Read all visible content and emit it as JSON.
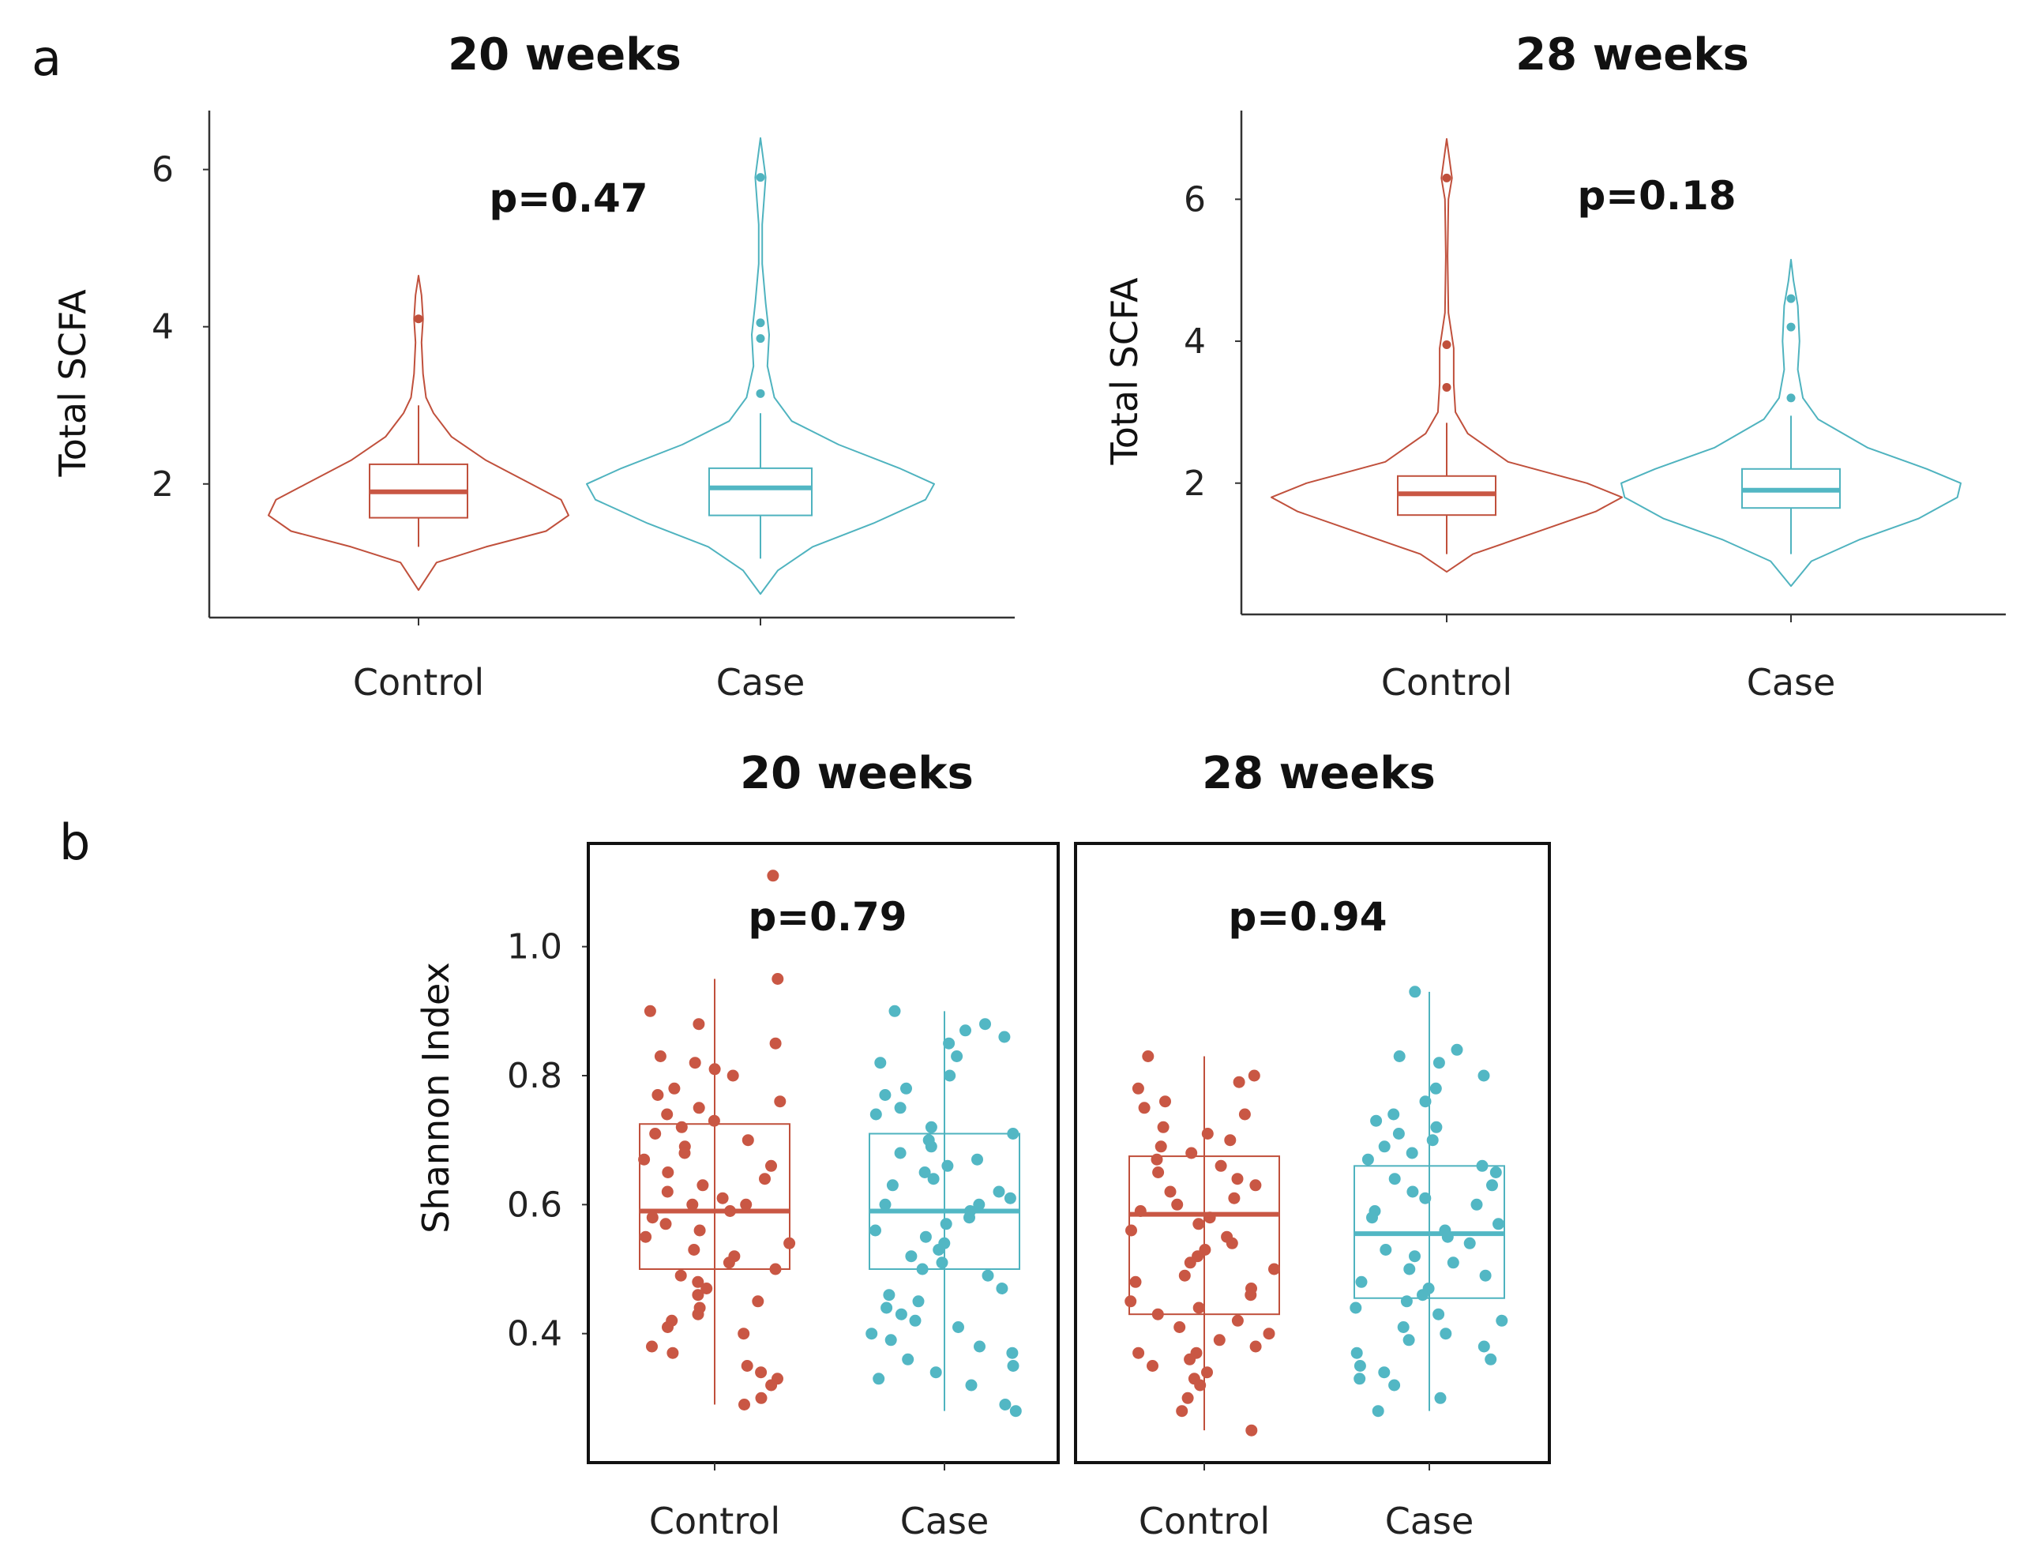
{
  "figure": {
    "panel_a_letter": "a",
    "panel_b_letter": "b"
  },
  "colors": {
    "control": "#c0503c",
    "case": "#4fb3bf",
    "control_fill": "#c95744",
    "case_fill": "#52b7c4",
    "axis": "#333333"
  },
  "chart_data": [
    {
      "id": "a20",
      "panel": "a",
      "type": "violin",
      "title": "20 weeks",
      "ylabel": "Total SCFA",
      "xlabel": "",
      "ylim": [
        0.3,
        6.75
      ],
      "yticks": [
        2,
        4,
        6
      ],
      "categories": [
        "Control",
        "Case"
      ],
      "annotation": "p=0.47",
      "series": [
        {
          "name": "Control",
          "min": 0.65,
          "max": 4.65,
          "q1": 1.57,
          "median": 1.9,
          "q3": 2.25,
          "whisker_low": 1.2,
          "whisker_high": 3.0,
          "outliers": [
            4.1
          ],
          "density": [
            [
              0.65,
              0.0
            ],
            [
              1.0,
              0.12
            ],
            [
              1.2,
              0.45
            ],
            [
              1.4,
              0.85
            ],
            [
              1.6,
              1.0
            ],
            [
              1.8,
              0.95
            ],
            [
              2.0,
              0.75
            ],
            [
              2.3,
              0.45
            ],
            [
              2.6,
              0.22
            ],
            [
              2.9,
              0.1
            ],
            [
              3.1,
              0.05
            ],
            [
              3.4,
              0.03
            ],
            [
              3.8,
              0.02
            ],
            [
              4.1,
              0.03
            ],
            [
              4.4,
              0.02
            ],
            [
              4.65,
              0.0
            ]
          ]
        },
        {
          "name": "Case",
          "min": 0.6,
          "max": 6.4,
          "q1": 1.6,
          "median": 1.95,
          "q3": 2.2,
          "whisker_low": 1.05,
          "whisker_high": 2.9,
          "outliers": [
            3.15,
            3.85,
            4.05,
            5.9
          ],
          "density": [
            [
              0.6,
              0.0
            ],
            [
              0.9,
              0.1
            ],
            [
              1.2,
              0.3
            ],
            [
              1.5,
              0.65
            ],
            [
              1.8,
              0.95
            ],
            [
              2.0,
              1.0
            ],
            [
              2.2,
              0.8
            ],
            [
              2.5,
              0.45
            ],
            [
              2.8,
              0.18
            ],
            [
              3.1,
              0.08
            ],
            [
              3.5,
              0.04
            ],
            [
              3.9,
              0.05
            ],
            [
              4.3,
              0.03
            ],
            [
              4.8,
              0.01
            ],
            [
              5.3,
              0.01
            ],
            [
              5.9,
              0.03
            ],
            [
              6.4,
              0.0
            ]
          ]
        }
      ]
    },
    {
      "id": "a28",
      "panel": "a",
      "type": "violin",
      "title": "28 weeks",
      "ylabel": "Total SCFA",
      "xlabel": "",
      "ylim": [
        0.15,
        7.25
      ],
      "yticks": [
        2,
        4,
        6
      ],
      "categories": [
        "Control",
        "Case"
      ],
      "annotation": "p=0.18",
      "series": [
        {
          "name": "Control",
          "min": 0.75,
          "max": 6.85,
          "q1": 1.55,
          "median": 1.85,
          "q3": 2.1,
          "whisker_low": 1.0,
          "whisker_high": 2.85,
          "outliers": [
            3.35,
            3.95,
            6.3
          ],
          "density": [
            [
              0.75,
              0.0
            ],
            [
              1.0,
              0.15
            ],
            [
              1.3,
              0.5
            ],
            [
              1.6,
              0.85
            ],
            [
              1.8,
              1.0
            ],
            [
              2.0,
              0.8
            ],
            [
              2.3,
              0.35
            ],
            [
              2.7,
              0.12
            ],
            [
              3.0,
              0.05
            ],
            [
              3.4,
              0.04
            ],
            [
              3.9,
              0.04
            ],
            [
              4.4,
              0.01
            ],
            [
              5.2,
              0.005
            ],
            [
              6.0,
              0.01
            ],
            [
              6.3,
              0.03
            ],
            [
              6.85,
              0.0
            ]
          ]
        },
        {
          "name": "Case",
          "min": 0.55,
          "max": 5.15,
          "q1": 1.65,
          "median": 1.9,
          "q3": 2.2,
          "whisker_low": 1.0,
          "whisker_high": 2.95,
          "outliers": [
            3.2,
            4.2,
            4.6
          ],
          "density": [
            [
              0.55,
              0.0
            ],
            [
              0.9,
              0.12
            ],
            [
              1.2,
              0.4
            ],
            [
              1.5,
              0.75
            ],
            [
              1.8,
              0.98
            ],
            [
              2.0,
              1.0
            ],
            [
              2.2,
              0.8
            ],
            [
              2.5,
              0.45
            ],
            [
              2.9,
              0.16
            ],
            [
              3.2,
              0.07
            ],
            [
              3.6,
              0.04
            ],
            [
              4.0,
              0.05
            ],
            [
              4.5,
              0.04
            ],
            [
              4.85,
              0.015
            ],
            [
              5.15,
              0.0
            ]
          ]
        }
      ]
    },
    {
      "id": "b",
      "panel": "b",
      "type": "box_scatter",
      "titles": [
        "20 weeks",
        "28 weeks"
      ],
      "ylabel": "Shannon Index",
      "xlabel": "",
      "ylim": [
        0.2,
        1.16
      ],
      "yticks": [
        "0.4",
        "0.6",
        "0.8",
        "1.0"
      ],
      "categories": [
        "Control",
        "Case"
      ],
      "facets": [
        {
          "name": "20 weeks",
          "annotation": "p=0.79",
          "series": [
            {
              "name": "Control",
              "q1": 0.5,
              "median": 0.59,
              "q3": 0.725,
              "whisker_low": 0.29,
              "whisker_high": 0.95,
              "points": [
                1.11,
                0.95,
                0.9,
                0.88,
                0.85,
                0.83,
                0.82,
                0.81,
                0.8,
                0.78,
                0.77,
                0.76,
                0.75,
                0.74,
                0.73,
                0.72,
                0.71,
                0.7,
                0.69,
                0.68,
                0.67,
                0.66,
                0.65,
                0.64,
                0.63,
                0.62,
                0.61,
                0.6,
                0.6,
                0.59,
                0.58,
                0.57,
                0.56,
                0.55,
                0.54,
                0.53,
                0.52,
                0.51,
                0.5,
                0.49,
                0.48,
                0.47,
                0.46,
                0.45,
                0.44,
                0.43,
                0.42,
                0.41,
                0.4,
                0.38,
                0.37,
                0.35,
                0.34,
                0.33,
                0.32,
                0.3,
                0.29
              ]
            },
            {
              "name": "Case",
              "q1": 0.5,
              "median": 0.59,
              "q3": 0.71,
              "whisker_low": 0.28,
              "whisker_high": 0.9,
              "points": [
                0.9,
                0.88,
                0.87,
                0.86,
                0.85,
                0.83,
                0.82,
                0.8,
                0.78,
                0.77,
                0.75,
                0.74,
                0.72,
                0.71,
                0.7,
                0.69,
                0.68,
                0.67,
                0.66,
                0.65,
                0.64,
                0.63,
                0.62,
                0.61,
                0.6,
                0.6,
                0.59,
                0.58,
                0.57,
                0.56,
                0.55,
                0.54,
                0.53,
                0.52,
                0.51,
                0.5,
                0.49,
                0.47,
                0.46,
                0.45,
                0.44,
                0.43,
                0.42,
                0.41,
                0.4,
                0.39,
                0.38,
                0.37,
                0.36,
                0.35,
                0.34,
                0.33,
                0.32,
                0.29,
                0.28
              ]
            }
          ]
        },
        {
          "name": "28 weeks",
          "annotation": "p=0.94",
          "series": [
            {
              "name": "Control",
              "q1": 0.43,
              "median": 0.585,
              "q3": 0.675,
              "whisker_low": 0.25,
              "whisker_high": 0.83,
              "points": [
                0.83,
                0.8,
                0.79,
                0.78,
                0.76,
                0.75,
                0.74,
                0.72,
                0.71,
                0.7,
                0.69,
                0.68,
                0.67,
                0.66,
                0.65,
                0.64,
                0.63,
                0.62,
                0.61,
                0.6,
                0.59,
                0.58,
                0.57,
                0.56,
                0.55,
                0.54,
                0.53,
                0.52,
                0.51,
                0.5,
                0.49,
                0.48,
                0.47,
                0.46,
                0.45,
                0.44,
                0.43,
                0.42,
                0.41,
                0.4,
                0.39,
                0.38,
                0.37,
                0.37,
                0.36,
                0.35,
                0.34,
                0.33,
                0.32,
                0.3,
                0.28,
                0.25
              ]
            },
            {
              "name": "Case",
              "q1": 0.455,
              "median": 0.555,
              "q3": 0.66,
              "whisker_low": 0.28,
              "whisker_high": 0.93,
              "points": [
                0.93,
                0.84,
                0.83,
                0.82,
                0.8,
                0.78,
                0.76,
                0.74,
                0.73,
                0.72,
                0.71,
                0.7,
                0.69,
                0.68,
                0.67,
                0.66,
                0.65,
                0.64,
                0.63,
                0.62,
                0.61,
                0.6,
                0.59,
                0.58,
                0.57,
                0.56,
                0.55,
                0.54,
                0.53,
                0.52,
                0.51,
                0.5,
                0.49,
                0.48,
                0.47,
                0.46,
                0.45,
                0.44,
                0.43,
                0.42,
                0.41,
                0.4,
                0.39,
                0.38,
                0.37,
                0.36,
                0.35,
                0.34,
                0.33,
                0.32,
                0.3,
                0.28
              ]
            }
          ]
        }
      ]
    }
  ]
}
